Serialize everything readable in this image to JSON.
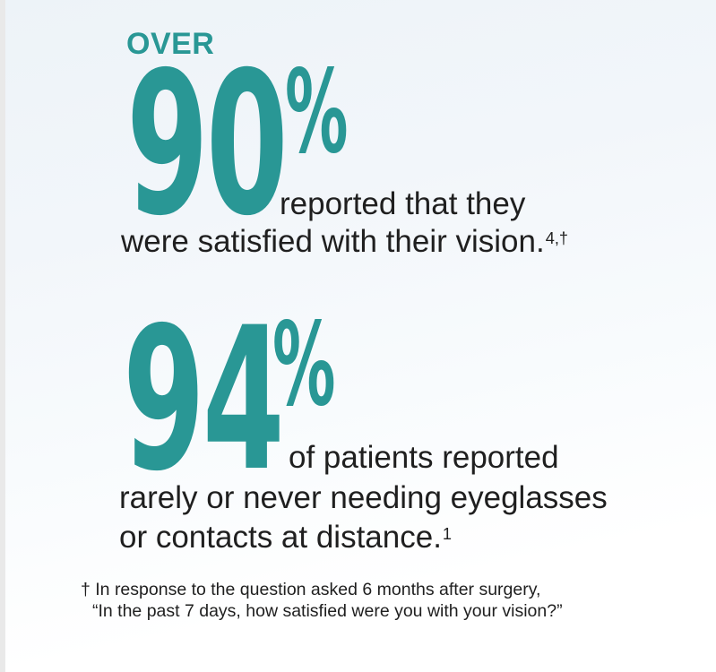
{
  "theme": {
    "accent": "#299795",
    "text": "#1f1f1f",
    "strip": "#e9e9e9",
    "background_top": "#edf3f8",
    "background_bottom": "#ffffff"
  },
  "stats": [
    {
      "kicker": "OVER",
      "value": "90",
      "unit": "%",
      "line1": "reported that they",
      "line2": "were satisfied with their vision.",
      "line2_superscript": "4,†"
    },
    {
      "value": "94",
      "unit": "%",
      "line1": "of patients reported",
      "line2": "rarely or never needing eyeglasses",
      "line3": "or contacts at distance.",
      "line3_superscript": "1"
    }
  ],
  "footnote": {
    "line1": "† In response to the question asked 6 months after surgery,",
    "line2": "“In the past 7 days, how satisfied were you with your vision?”"
  }
}
